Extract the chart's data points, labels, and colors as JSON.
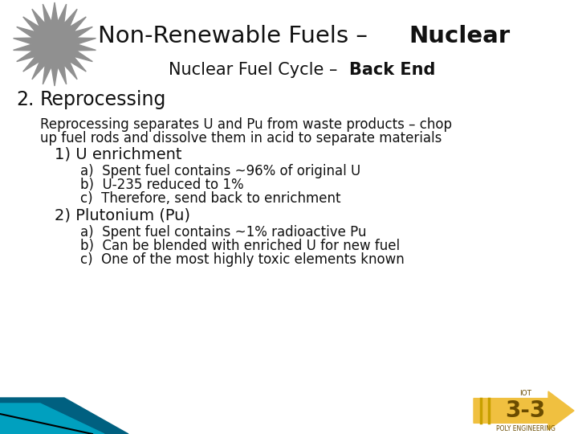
{
  "bg_color": "#ffffff",
  "title_normal": "Non-Renewable Fuels – ",
  "title_bold": "Nuclear",
  "subtitle_normal": "Nuclear Fuel Cycle – ",
  "subtitle_bold": "Back End",
  "heading_num": "2.",
  "heading_text": "  Reprocessing",
  "body1": "Reprocessing separates U and Pu from waste products – chop",
  "body2": "up fuel rods and dissolve them in acid to separate materials",
  "section1": "  1) U enrichment",
  "s1a": "      a)  Spent fuel contains ~96% of original U",
  "s1b": "      b)  U-235 reduced to 1%",
  "s1c": "      c)  Therefore, send back to enrichment",
  "section2": "  2) Plutonium (Pu)",
  "s2a": "      a)  Spent fuel contains ~1% radioactive Pu",
  "s2b": "      b)  Can be blended with enriched U for new fuel",
  "s2c": "      c)  One of the most highly toxic elements known",
  "arrow_color": "#f0c040",
  "arrow_label_top": "IOT",
  "arrow_label_main": "3-3",
  "arrow_label_bottom": "POLY ENGINEERING",
  "arrow_text_color": "#6b4c00",
  "sun_color": "#909090",
  "bar_dark": "#006080",
  "bar_light": "#00a0bf"
}
